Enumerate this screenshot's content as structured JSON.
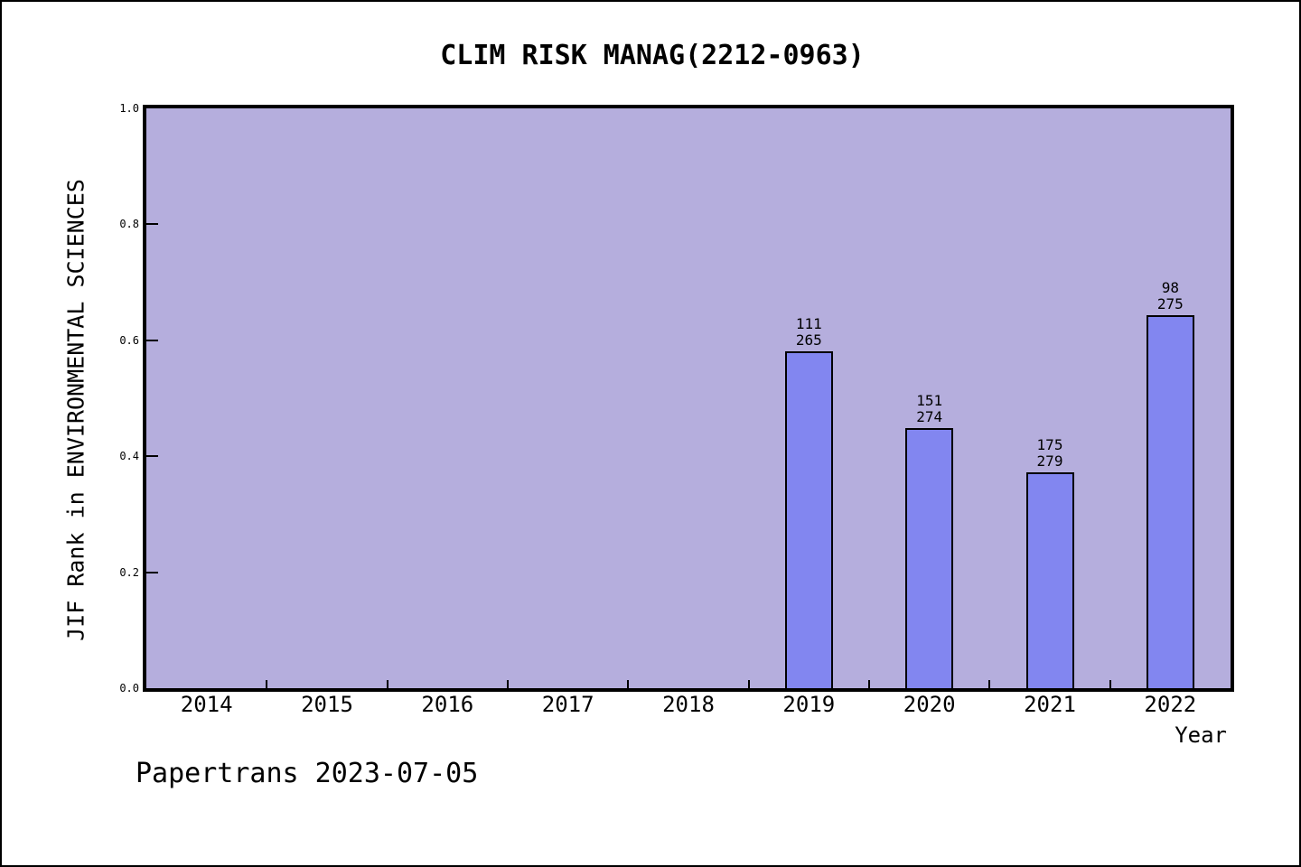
{
  "figure": {
    "footer": "Papertrans 2023-07-05"
  },
  "chart_data": {
    "type": "bar",
    "title": "CLIM RISK MANAG(2212-0963)",
    "xlabel": "Year",
    "ylabel": "JIF Rank in ENVIRONMENTAL SCIENCES",
    "categories": [
      "2014",
      "2015",
      "2016",
      "2017",
      "2018",
      "2019",
      "2020",
      "2021",
      "2022"
    ],
    "ylim": [
      0.0,
      1.0
    ],
    "ytick_labels": [
      "0.0",
      "0.2",
      "0.4",
      "0.6",
      "0.8",
      "1.0"
    ],
    "grid": false,
    "legend": false,
    "bars": [
      {
        "category": "2019",
        "rank": 111,
        "total": 265,
        "value": 0.581
      },
      {
        "category": "2020",
        "rank": 151,
        "total": 274,
        "value": 0.449
      },
      {
        "category": "2021",
        "rank": 175,
        "total": 279,
        "value": 0.373
      },
      {
        "category": "2022",
        "rank": 98,
        "total": 275,
        "value": 0.644
      }
    ],
    "bar_annotation_format": "rank over total, stacked above each bar"
  },
  "colors": {
    "figure_background": "#ffffff",
    "figure_border": "#000000",
    "plot_background": "#b5aedd",
    "bar_fill": "#8286f0",
    "bar_edge": "#000000",
    "text": "#000000"
  }
}
